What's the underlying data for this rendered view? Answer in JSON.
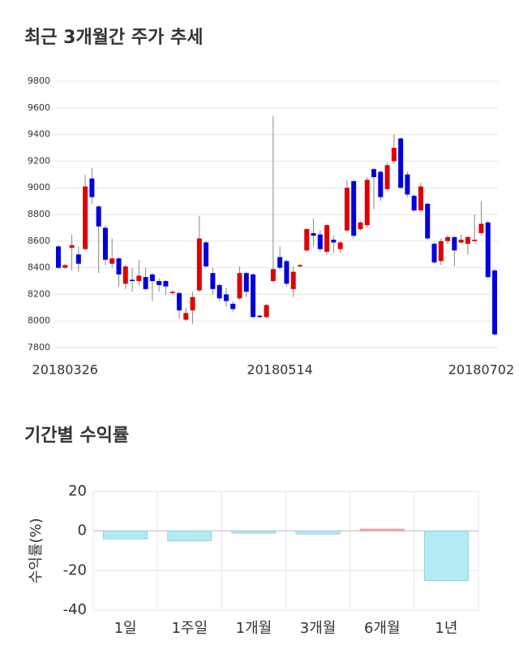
{
  "chart_data": [
    {
      "type": "candlestick",
      "title": "최근 3개월간 주가 추세",
      "categories": [
        null,
        "20180326",
        null,
        null,
        null,
        null,
        null,
        null,
        null,
        null,
        null,
        null,
        null,
        null,
        null,
        null,
        null,
        null,
        null,
        null,
        null,
        null,
        null,
        null,
        null,
        null,
        null,
        null,
        null,
        null,
        null,
        null,
        null,
        "20180514",
        null,
        null,
        null,
        null,
        null,
        null,
        null,
        null,
        null,
        null,
        null,
        null,
        null,
        null,
        null,
        null,
        null,
        null,
        null,
        null,
        null,
        null,
        null,
        null,
        null,
        null,
        null,
        null,
        null,
        "20180702",
        null,
        null
      ],
      "open": [
        8560,
        8400,
        8550,
        8500,
        8540,
        9070,
        8860,
        8700,
        8430,
        8470,
        8280,
        8310,
        8300,
        8330,
        8350,
        8300,
        8300,
        8210,
        8210,
        8010,
        8080,
        8230,
        8590,
        8360,
        8270,
        8200,
        8130,
        8170,
        8360,
        8350,
        8040,
        8030,
        8300,
        8480,
        8450,
        8240,
        8410,
        8530,
        8660,
        8650,
        8520,
        8610,
        8540,
        8680,
        9050,
        8690,
        8720,
        9140,
        9120,
        8990,
        9200,
        9370,
        9100,
        8940,
        8830,
        8880,
        8580,
        8450,
        8600,
        8630,
        8590,
        8580,
        8600,
        8660,
        8740,
        8380
      ],
      "high": [
        8570,
        8430,
        8650,
        8560,
        9100,
        9150,
        8870,
        8720,
        8620,
        8480,
        8420,
        8400,
        8460,
        8400,
        8360,
        8320,
        8310,
        8230,
        8220,
        8100,
        8220,
        8790,
        8600,
        8400,
        8280,
        8250,
        8150,
        8410,
        8370,
        8360,
        8050,
        8130,
        9540,
        8560,
        8460,
        8410,
        8430,
        8700,
        8770,
        8680,
        8730,
        8640,
        8600,
        9060,
        9060,
        8750,
        9080,
        9150,
        9130,
        9190,
        9400,
        9380,
        9120,
        8950,
        9040,
        8890,
        8590,
        8620,
        8650,
        8640,
        8650,
        8640,
        8800,
        8900,
        8750,
        8390
      ],
      "low": [
        8390,
        8390,
        8380,
        8370,
        8530,
        8880,
        8360,
        8420,
        8400,
        8260,
        8240,
        8220,
        8270,
        8230,
        8150,
        8220,
        8200,
        8200,
        8020,
        8000,
        7980,
        8220,
        8400,
        8200,
        8150,
        8110,
        8070,
        8160,
        8180,
        8020,
        8020,
        8020,
        8290,
        8380,
        8260,
        8180,
        8400,
        8520,
        8560,
        8520,
        8500,
        8510,
        8510,
        8670,
        8620,
        8680,
        8700,
        8840,
        8900,
        8980,
        9180,
        8990,
        8930,
        8820,
        8820,
        8610,
        8430,
        8420,
        8580,
        8410,
        8580,
        8500,
        8600,
        8650,
        8320,
        7890
      ],
      "close": [
        8400,
        8420,
        8570,
        8430,
        9010,
        8930,
        8710,
        8460,
        8470,
        8350,
        8410,
        8300,
        8340,
        8240,
        8300,
        8270,
        8260,
        8220,
        8080,
        8060,
        8180,
        8620,
        8410,
        8240,
        8170,
        8150,
        8090,
        8360,
        8220,
        8030,
        8030,
        8120,
        8390,
        8400,
        8280,
        8370,
        8420,
        8690,
        8640,
        8540,
        8720,
        8590,
        8590,
        9000,
        8640,
        8740,
        9060,
        9080,
        8930,
        9170,
        9300,
        9000,
        8950,
        8830,
        9010,
        8620,
        8440,
        8600,
        8630,
        8530,
        8610,
        8630,
        8610,
        8730,
        8330,
        7900
      ],
      "up_color": "#e00000",
      "down_color": "#0000dd",
      "ylim": [
        7800,
        9800
      ],
      "yticks": [
        7800,
        8000,
        8200,
        8400,
        8600,
        8800,
        9000,
        9200,
        9400,
        9600,
        9800
      ],
      "grid": true
    },
    {
      "type": "bar",
      "title": "기간별 수익률",
      "y_label": "수익률(%)",
      "categories": [
        "1일",
        "1주일",
        "1개월",
        "3개월",
        "6개월",
        "1년"
      ],
      "values": [
        -4,
        -5,
        -1,
        -1.5,
        1,
        -25
      ],
      "positive_color": "#f4b3b3",
      "negative_color": "#b3eaf4",
      "ylim": [
        -40,
        20
      ],
      "yticks": [
        -40,
        -20,
        0,
        20
      ],
      "grid": true
    }
  ]
}
